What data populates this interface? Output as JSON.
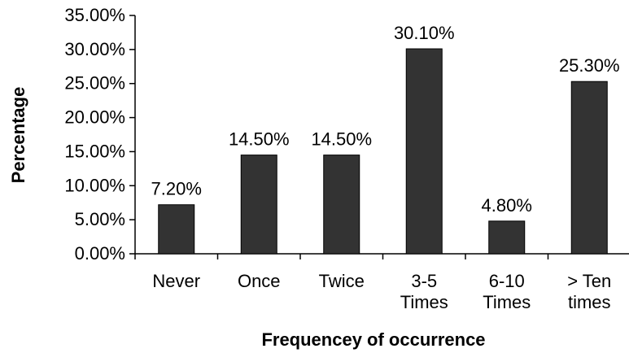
{
  "chart_data": {
    "type": "bar",
    "title": "",
    "xlabel": "Frequencey of occurrence",
    "ylabel": "Percentage",
    "ylim": [
      0,
      35
    ],
    "yticks": [
      0,
      5,
      10,
      15,
      20,
      25,
      30,
      35
    ],
    "ytick_labels": [
      "0.00%",
      "5.00%",
      "10.00%",
      "15.00%",
      "20.00%",
      "25.00%",
      "30.00%",
      "35.00%"
    ],
    "categories": [
      [
        "Never"
      ],
      [
        "Once"
      ],
      [
        "Twice"
      ],
      [
        "3-5",
        "Times"
      ],
      [
        "6-10",
        "Times"
      ],
      [
        "> Ten",
        "times"
      ]
    ],
    "values": [
      7.2,
      14.5,
      14.5,
      30.1,
      4.8,
      25.3
    ],
    "data_labels": [
      "7.20%",
      "14.50%",
      "14.50%",
      "30.10%",
      "4.80%",
      "25.30%"
    ],
    "bar_color": "#333333",
    "bar_outline_color": "#000000",
    "grid": false,
    "legend": "none"
  }
}
